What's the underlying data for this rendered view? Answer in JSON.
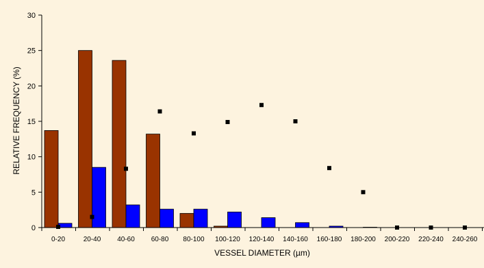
{
  "colors": {
    "background": "#fdf3df",
    "series_brown": "#993300",
    "series_blue": "#0000ff",
    "markers": "#000000"
  },
  "chart_data": {
    "type": "bar",
    "title": "",
    "xlabel": "VESSEL DIAMETER (µm)",
    "ylabel": "RELATIVE FREQUENCY (%)",
    "ylim": [
      0,
      30
    ],
    "yticks": [
      0,
      5,
      10,
      15,
      20,
      25,
      30
    ],
    "grid": false,
    "legend": "none",
    "categories": [
      "0-20",
      "20-40",
      "40-60",
      "60-80",
      "80-100",
      "100-120",
      "120-140",
      "140-160",
      "160-180",
      "180-200",
      "200-220",
      "220-240",
      "240-260"
    ],
    "series": [
      {
        "type": "bar",
        "color": "#993300",
        "values": [
          13.7,
          25.0,
          23.6,
          13.2,
          2.0,
          0.2,
          0,
          0,
          0,
          0,
          0,
          0,
          0
        ]
      },
      {
        "type": "bar",
        "color": "#0000ff",
        "values": [
          0.6,
          8.5,
          3.2,
          2.6,
          2.6,
          2.2,
          1.4,
          0.7,
          0.2,
          0.05,
          0,
          0,
          0
        ]
      },
      {
        "type": "scatter",
        "color": "#000000",
        "values": [
          0.1,
          1.5,
          8.3,
          16.4,
          13.3,
          14.9,
          17.3,
          15.0,
          8.4,
          5.0,
          0.0,
          0.0,
          0.0
        ]
      }
    ]
  }
}
